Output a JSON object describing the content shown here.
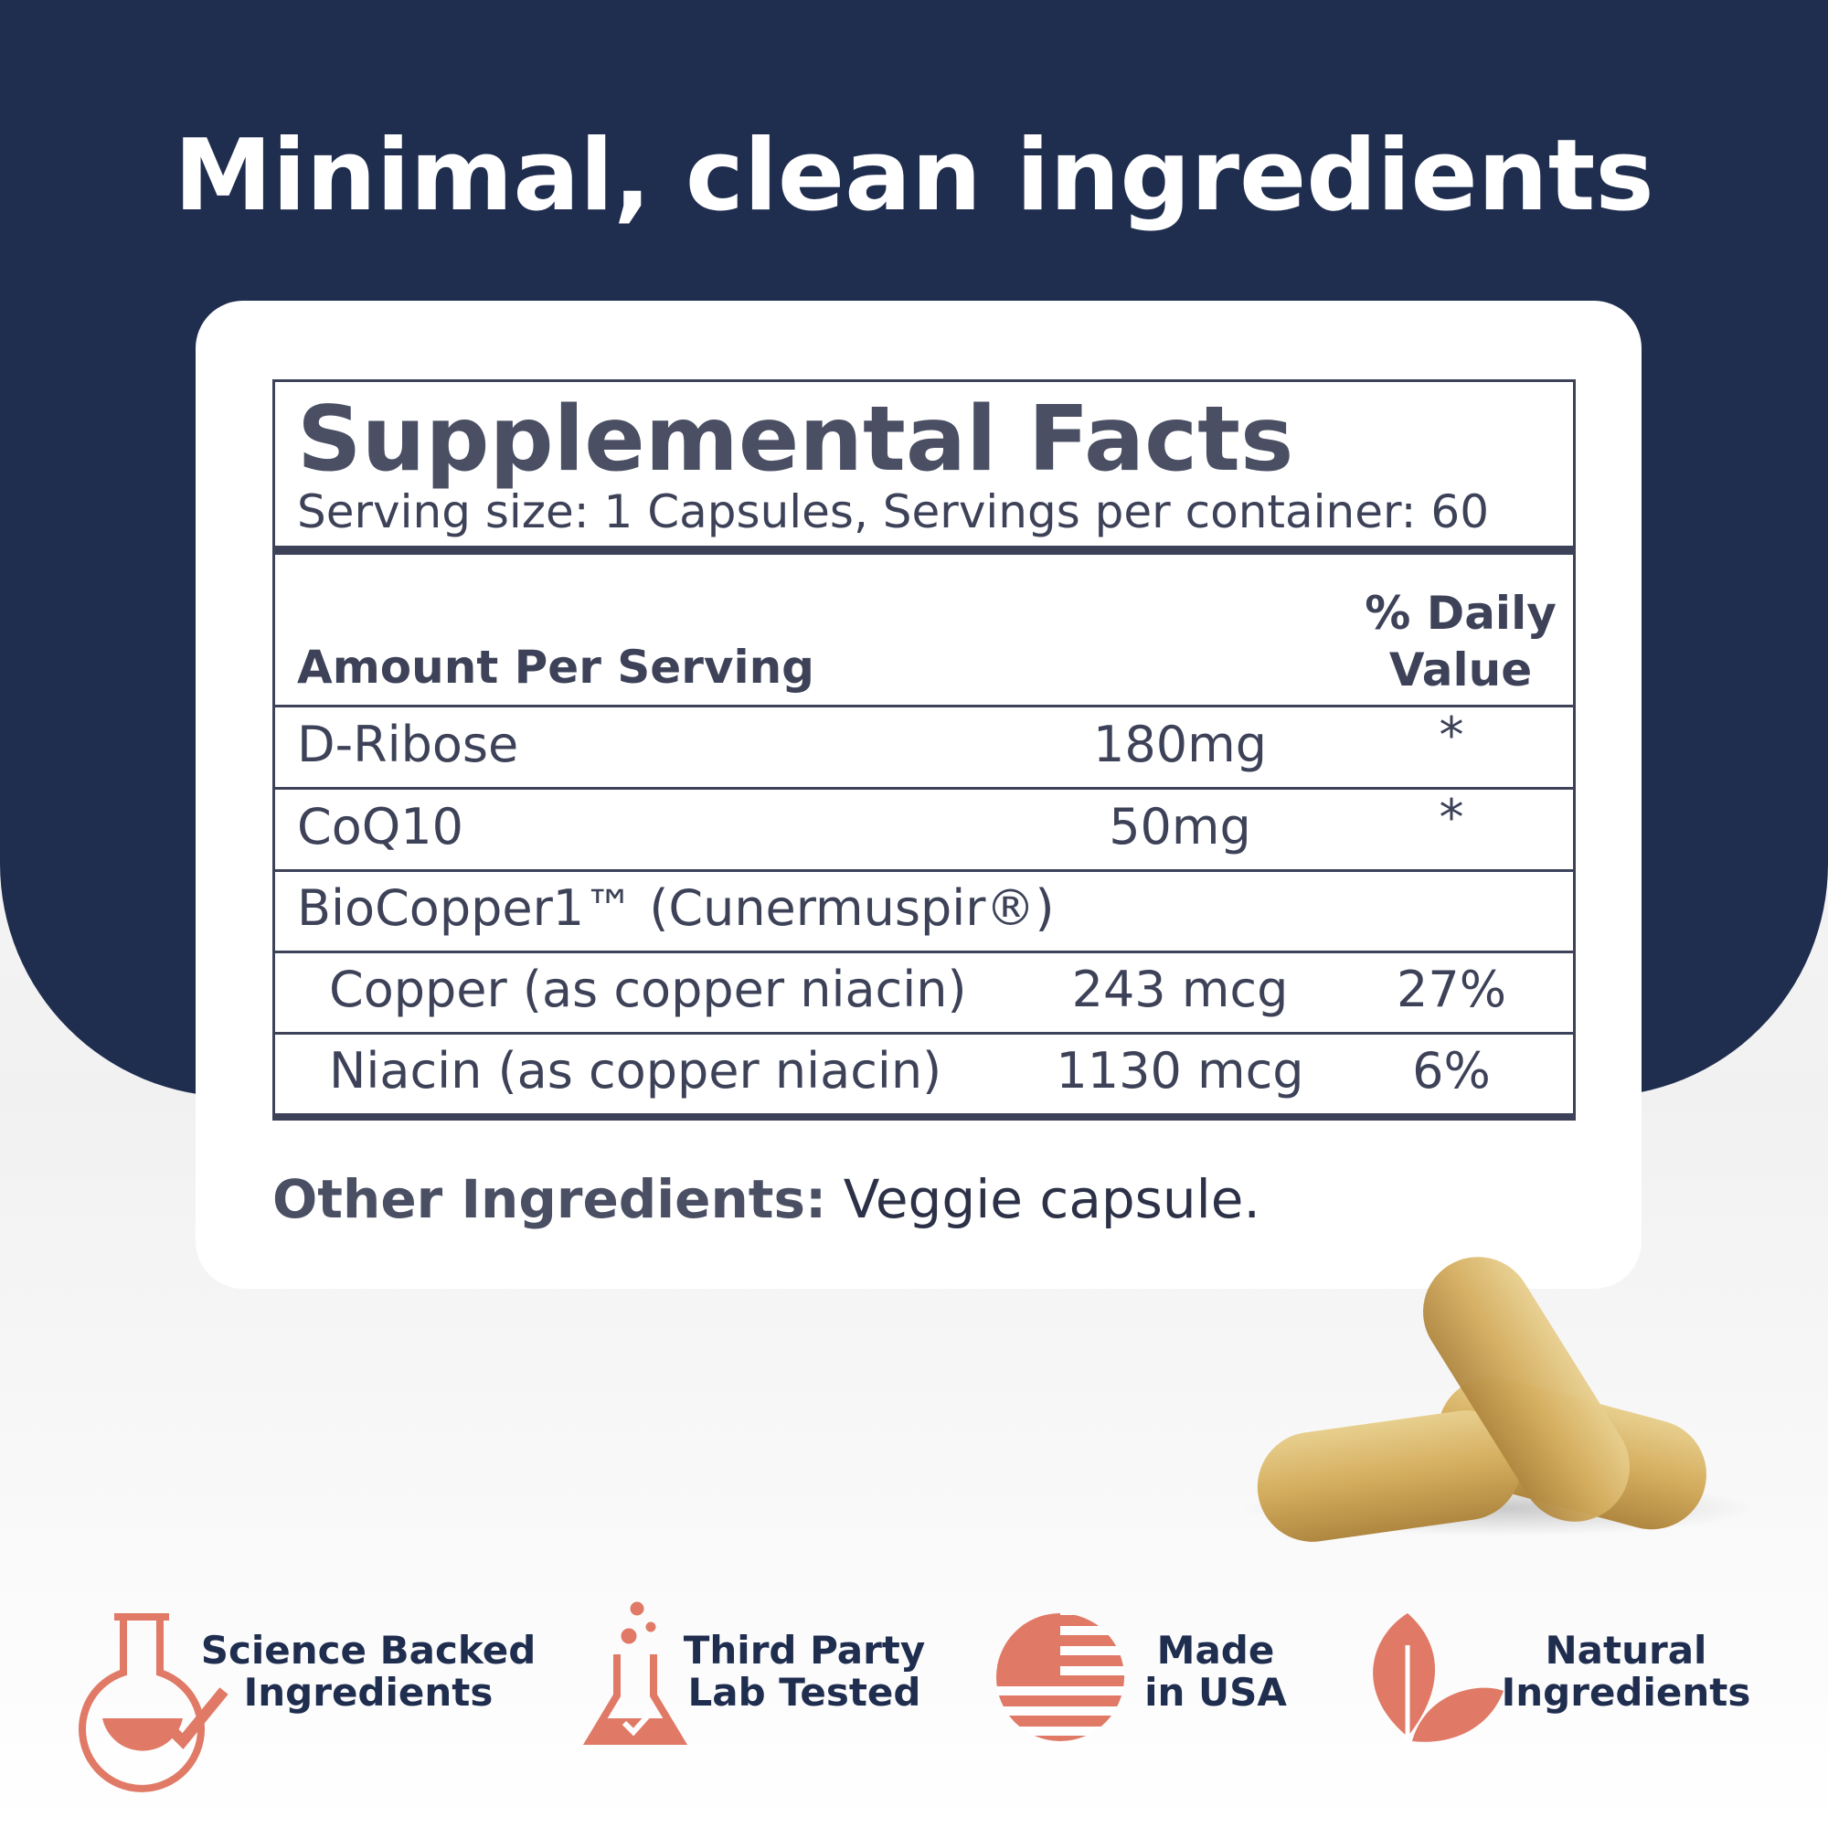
{
  "headline": "Minimal, clean ingredients",
  "facts": {
    "title": "Supplemental Facts",
    "serving": "Serving size: 1 Capsules,  Servings per container: 60",
    "header_amount": "Amount Per Serving",
    "header_dv": "% Daily Value",
    "rows": [
      {
        "name": "D-Ribose",
        "amount": "180mg",
        "dv": "*"
      },
      {
        "name": "CoQ10",
        "amount": "50mg",
        "dv": "*"
      },
      {
        "name": "BioCopper1™ (Cunermuspir®)"
      },
      {
        "name": "Copper (as copper niacin)",
        "amount": "243 mcg",
        "dv": "27%"
      },
      {
        "name": "Niacin (as copper niacin)",
        "amount": "1130 mcg",
        "dv": "6%"
      }
    ]
  },
  "other": {
    "label": "Other Ingredients:",
    "value": "Veggie capsule."
  },
  "badges": [
    {
      "lines": [
        "Science Backed",
        "Ingredients"
      ]
    },
    {
      "lines": [
        "Third Party",
        "Lab Tested"
      ]
    },
    {
      "lines": [
        "Made",
        "in USA"
      ]
    },
    {
      "lines": [
        "Natural",
        "Ingredients"
      ]
    }
  ]
}
